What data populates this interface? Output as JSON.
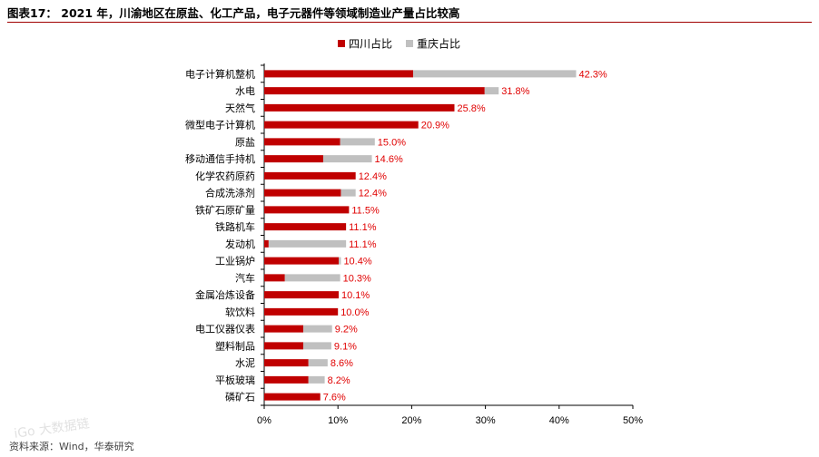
{
  "title": "图表17： 2021 年，川渝地区在原盐、化工产品，电子元器件等领域制造业产量占比较高",
  "source": "资料来源：Wind，华泰研究",
  "watermark": "iGo 大数据链",
  "colors": {
    "sichuan": "#c00000",
    "chongqing": "#c0c0c0",
    "label": "#e00000"
  },
  "chart_data": {
    "type": "bar",
    "orientation": "horizontal",
    "stacked": true,
    "title": "",
    "xlabel": "",
    "ylabel": "",
    "legend": "top",
    "grid": false,
    "xlim": [
      0,
      50
    ],
    "xticks": [
      "0%",
      "10%",
      "20%",
      "30%",
      "40%",
      "50%"
    ],
    "categories": [
      "电子计算机整机",
      "水电",
      "天然气",
      "微型电子计算机",
      "原盐",
      "移动通信手持机",
      "化学农药原药",
      "合成洗涤剂",
      "铁矿石原矿量",
      "铁路机车",
      "发动机",
      "工业锅炉",
      "汽车",
      "金属冶炼设备",
      "软饮料",
      "电工仪器仪表",
      "塑料制品",
      "水泥",
      "平板玻璃",
      "磷矿石"
    ],
    "series": [
      {
        "name": "四川占比",
        "values": [
          20.2,
          29.9,
          25.8,
          20.9,
          10.3,
          8.0,
          12.4,
          10.4,
          11.5,
          11.1,
          0.6,
          10.1,
          2.8,
          10.1,
          10.0,
          5.3,
          5.3,
          6.0,
          6.0,
          7.6
        ]
      },
      {
        "name": "重庆占比",
        "values": [
          22.1,
          1.9,
          0.0,
          0.0,
          4.7,
          6.6,
          0.0,
          2.0,
          0.0,
          0.0,
          10.5,
          0.3,
          7.5,
          0.0,
          0.0,
          3.9,
          3.8,
          2.6,
          2.2,
          0.0
        ]
      }
    ],
    "labels": [
      "42.3%",
      "31.8%",
      "25.8%",
      "20.9%",
      "15.0%",
      "14.6%",
      "12.4%",
      "12.4%",
      "11.5%",
      "11.1%",
      "11.1%",
      "10.4%",
      "10.3%",
      "10.1%",
      "10.0%",
      "9.2%",
      "9.1%",
      "8.6%",
      "8.2%",
      "7.6%"
    ]
  }
}
